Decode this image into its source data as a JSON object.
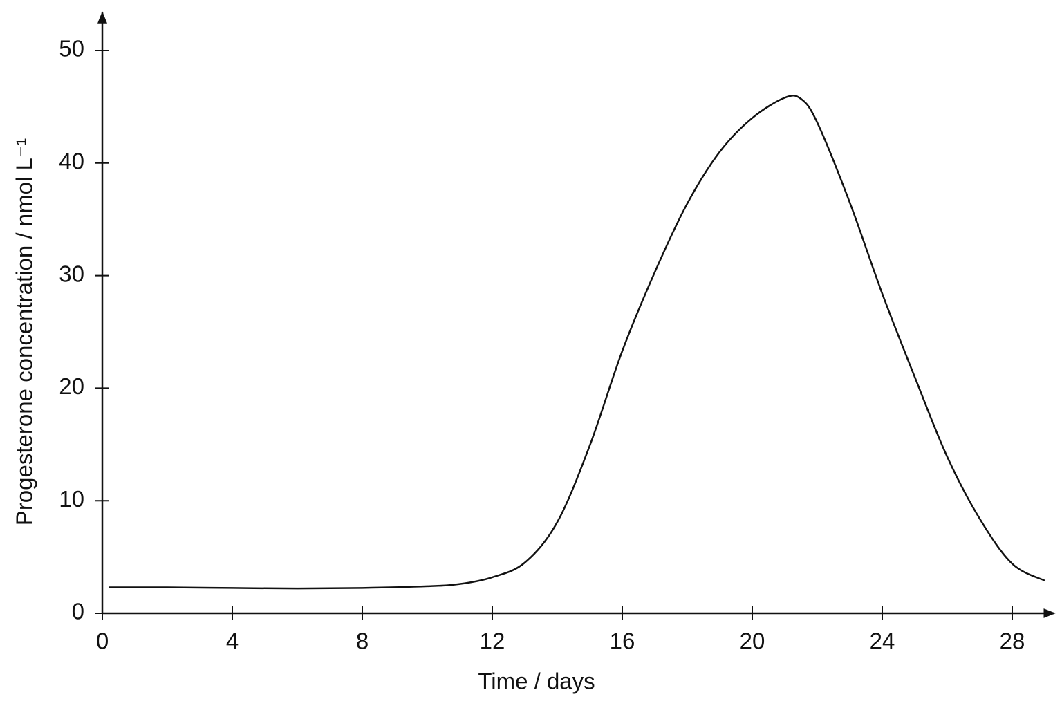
{
  "chart_data": {
    "type": "line",
    "x_label": "Time / days",
    "y_label": "Progesterone concentration / nmol L⁻¹",
    "x": [
      0.2,
      2,
      4,
      6,
      8,
      10,
      11,
      12,
      13,
      14,
      15,
      16,
      17,
      18,
      19,
      20,
      21,
      21.5,
      22,
      23,
      24,
      25,
      26,
      27,
      28,
      29
    ],
    "series": [
      {
        "color": "#111111",
        "values": [
          2.3,
          2.3,
          2.25,
          2.2,
          2.25,
          2.4,
          2.6,
          3.2,
          4.5,
          8.1,
          14.9,
          23.3,
          30.3,
          36.4,
          41,
          44,
          45.8,
          45.7,
          43.6,
          36.5,
          28.4,
          21,
          13.9,
          8.4,
          4.4,
          2.9
        ]
      }
    ],
    "xlim": [
      0,
      29.3
    ],
    "ylim": [
      0,
      53.4
    ],
    "xticks": [
      0,
      4,
      8,
      12,
      16,
      20,
      24,
      28
    ],
    "yticks": [
      0,
      10,
      20,
      30,
      40,
      50
    ],
    "grid": false
  }
}
